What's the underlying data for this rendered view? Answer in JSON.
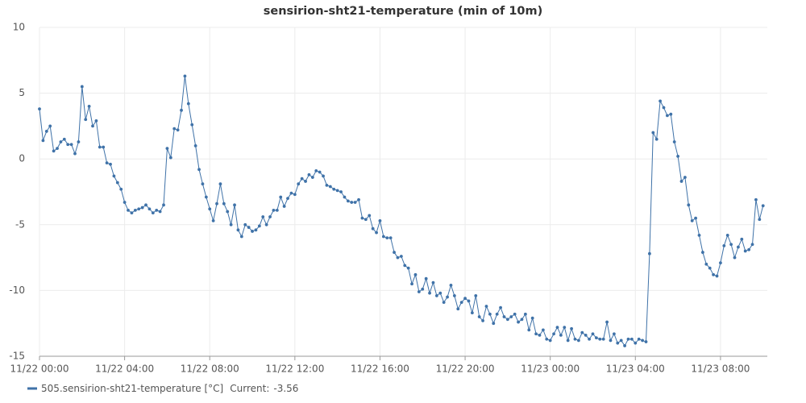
{
  "chart_data": {
    "type": "line",
    "title": "sensirion-sht21-temperature (min of 10m)",
    "x": [
      0,
      10,
      20,
      30,
      40,
      50,
      60,
      70,
      80,
      90,
      100,
      110,
      120,
      130,
      140,
      150,
      160,
      170,
      180,
      190,
      200,
      210,
      220,
      230,
      240,
      250,
      260,
      270,
      280,
      290,
      300,
      310,
      320,
      330,
      340,
      350,
      360,
      370,
      380,
      390,
      400,
      410,
      420,
      430,
      440,
      450,
      460,
      470,
      480,
      490,
      500,
      510,
      520,
      530,
      540,
      550,
      560,
      570,
      580,
      590,
      600,
      610,
      620,
      630,
      640,
      650,
      660,
      670,
      680,
      690,
      700,
      710,
      720,
      730,
      740,
      750,
      760,
      770,
      780,
      790,
      800,
      810,
      820,
      830,
      840,
      850,
      860,
      870,
      880,
      890,
      900,
      910,
      920,
      930,
      940,
      950,
      960,
      970,
      980,
      990,
      1000,
      1010,
      1020,
      1030,
      1040,
      1050,
      1060,
      1070,
      1080,
      1090,
      1100,
      1110,
      1120,
      1130,
      1140,
      1150,
      1160,
      1170,
      1180,
      1190,
      1200,
      1210,
      1220,
      1230,
      1240,
      1250,
      1260,
      1270,
      1280,
      1290,
      1300,
      1310,
      1320,
      1330,
      1340,
      1350,
      1360,
      1370,
      1380,
      1390,
      1400,
      1410,
      1420,
      1430,
      1440,
      1450,
      1460,
      1470,
      1480,
      1490,
      1500,
      1510,
      1520,
      1530,
      1540,
      1550,
      1560,
      1570,
      1580,
      1590,
      1600,
      1610,
      1620,
      1630,
      1640,
      1650,
      1660,
      1670,
      1680,
      1690,
      1700,
      1710,
      1720,
      1730,
      1740,
      1750,
      1760,
      1770,
      1780,
      1790,
      1800,
      1810,
      1820,
      1830,
      1840,
      1850,
      1860,
      1870,
      1880,
      1890,
      1900,
      1910,
      1920,
      1930,
      1940,
      1950,
      1960,
      1970,
      1980,
      1990,
      2000,
      2010,
      2020,
      2030,
      2040
    ],
    "series": [
      {
        "name": "505.sensirion-sht21-temperature [°C]",
        "color": "#3f72a8",
        "values": [
          3.8,
          1.4,
          2.1,
          2.5,
          0.6,
          0.8,
          1.3,
          1.5,
          1.1,
          1.1,
          0.4,
          1.3,
          5.5,
          3.0,
          4.0,
          2.5,
          2.9,
          0.9,
          0.9,
          -0.3,
          -0.4,
          -1.3,
          -1.8,
          -2.3,
          -3.3,
          -3.9,
          -4.1,
          -3.9,
          -3.8,
          -3.7,
          -3.5,
          -3.8,
          -4.1,
          -3.9,
          -4.0,
          -3.5,
          0.8,
          0.1,
          2.3,
          2.2,
          3.7,
          6.3,
          4.2,
          2.6,
          1.0,
          -0.8,
          -1.9,
          -2.9,
          -3.8,
          -4.7,
          -3.4,
          -1.9,
          -3.4,
          -4.0,
          -5.0,
          -3.5,
          -5.4,
          -5.9,
          -5.0,
          -5.2,
          -5.5,
          -5.4,
          -5.1,
          -4.4,
          -5.0,
          -4.4,
          -3.9,
          -3.9,
          -2.9,
          -3.6,
          -3.0,
          -2.6,
          -2.7,
          -1.9,
          -1.5,
          -1.7,
          -1.2,
          -1.4,
          -0.9,
          -1.0,
          -1.3,
          -2.0,
          -2.1,
          -2.3,
          -2.4,
          -2.5,
          -2.9,
          -3.2,
          -3.3,
          -3.3,
          -3.1,
          -4.5,
          -4.6,
          -4.3,
          -5.3,
          -5.6,
          -4.7,
          -5.9,
          -6.0,
          -6.0,
          -7.1,
          -7.5,
          -7.4,
          -8.1,
          -8.3,
          -9.5,
          -8.8,
          -10.1,
          -9.9,
          -9.1,
          -10.2,
          -9.4,
          -10.4,
          -10.2,
          -10.9,
          -10.5,
          -9.6,
          -10.4,
          -11.4,
          -10.9,
          -10.6,
          -10.8,
          -11.7,
          -10.4,
          -12.0,
          -12.3,
          -11.2,
          -11.8,
          -12.5,
          -11.8,
          -11.3,
          -12.0,
          -12.2,
          -12.0,
          -11.8,
          -12.4,
          -12.2,
          -11.8,
          -13.0,
          -12.1,
          -13.3,
          -13.4,
          -13.0,
          -13.7,
          -13.8,
          -13.3,
          -12.8,
          -13.4,
          -12.8,
          -13.8,
          -12.9,
          -13.7,
          -13.8,
          -13.2,
          -13.4,
          -13.7,
          -13.3,
          -13.6,
          -13.7,
          -13.7,
          -12.4,
          -13.8,
          -13.3,
          -14.0,
          -13.8,
          -14.2,
          -13.7,
          -13.7,
          -14.0,
          -13.7,
          -13.8,
          -13.9,
          -7.2,
          2.0,
          1.5,
          4.4,
          3.9,
          3.3,
          3.4,
          1.3,
          0.2,
          -1.7,
          -1.4,
          -3.5,
          -4.7,
          -4.5,
          -5.8,
          -7.1,
          -8.0,
          -8.3,
          -8.8,
          -8.9,
          -7.9,
          -6.6,
          -5.8,
          -6.5,
          -7.5,
          -6.7,
          -6.1,
          -7.0,
          -6.9,
          -6.5,
          -3.1,
          -4.6,
          -3.56
        ]
      }
    ],
    "current_label": "Current:",
    "xlim": [
      0,
      2052
    ],
    "xticks": [
      {
        "value": 0,
        "label": "11/22 00:00"
      },
      {
        "value": 240,
        "label": "11/22 04:00"
      },
      {
        "value": 480,
        "label": "11/22 08:00"
      },
      {
        "value": 720,
        "label": "11/22 12:00"
      },
      {
        "value": 960,
        "label": "11/22 16:00"
      },
      {
        "value": 1200,
        "label": "11/22 20:00"
      },
      {
        "value": 1440,
        "label": "11/23 00:00"
      },
      {
        "value": 1680,
        "label": "11/23 04:00"
      },
      {
        "value": 1920,
        "label": "11/23 08:00"
      }
    ],
    "ylim": [
      -15,
      10
    ],
    "yticks": [
      -15,
      -10,
      -5,
      0,
      5,
      10
    ],
    "grid": true
  }
}
